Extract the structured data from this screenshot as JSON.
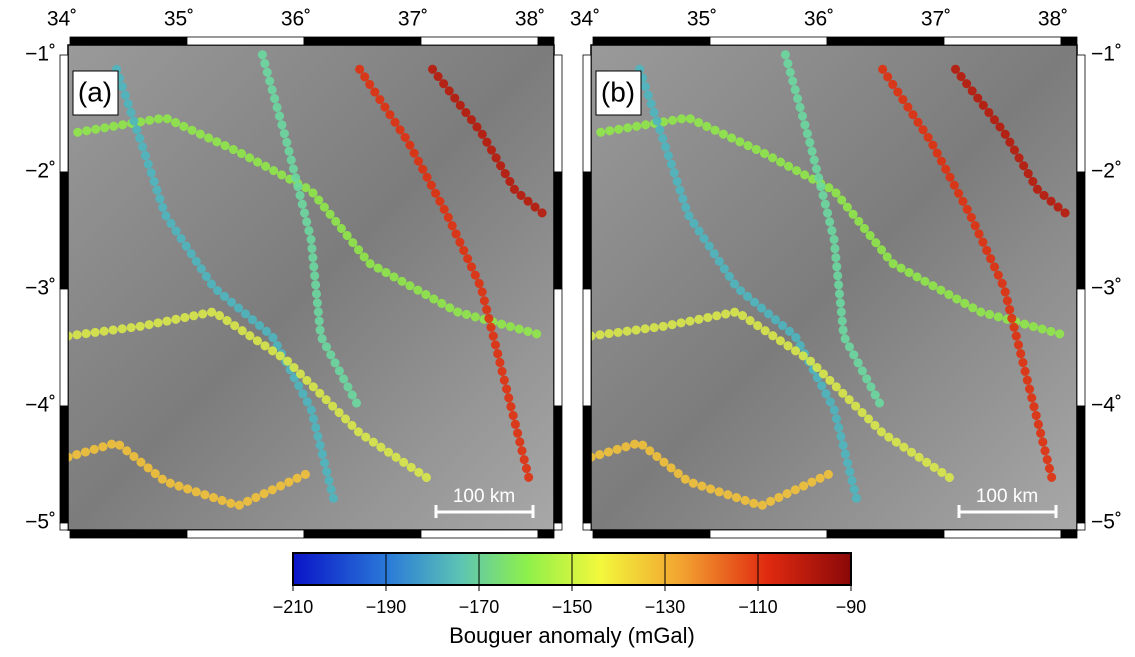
{
  "panels": [
    {
      "label": "(a)"
    },
    {
      "label": "(b)"
    }
  ],
  "lon_ticks": [
    "34˚",
    "35˚",
    "36˚",
    "37˚",
    "38˚"
  ],
  "lat_ticks": [
    "−1˚",
    "−2˚",
    "−3˚",
    "−4˚",
    "−5˚"
  ],
  "scale_bar": "100 km",
  "colorbar": {
    "label": "Bouguer anomaly (mGal)",
    "range": [
      -210,
      -90
    ],
    "ticks": [
      {
        "value": -210,
        "label": "−210"
      },
      {
        "value": -190,
        "label": "−190"
      },
      {
        "value": -170,
        "label": "−170"
      },
      {
        "value": -150,
        "label": "−150"
      },
      {
        "value": -130,
        "label": "−130"
      },
      {
        "value": -110,
        "label": "−110"
      },
      {
        "value": -90,
        "label": "−90"
      }
    ]
  }
}
